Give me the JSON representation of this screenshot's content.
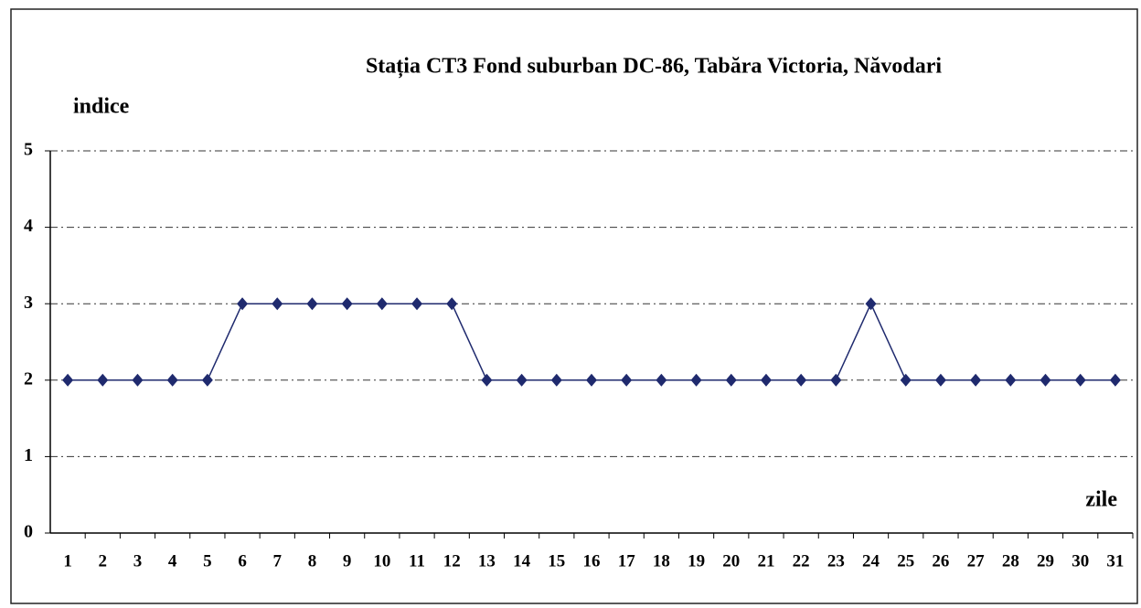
{
  "chart_data": {
    "type": "line",
    "title": "Stația CT3 Fond suburban  DC-86, Tabăra Victoria, Năvodari",
    "y_label": "indice",
    "x_label": "zile",
    "categories": [
      1,
      2,
      3,
      4,
      5,
      6,
      7,
      8,
      9,
      10,
      11,
      12,
      13,
      14,
      15,
      16,
      17,
      18,
      19,
      20,
      21,
      22,
      23,
      24,
      25,
      26,
      27,
      28,
      29,
      30,
      31
    ],
    "series": [
      {
        "color": "#1f2a6e",
        "values": [
          2,
          2,
          2,
          2,
          2,
          3,
          3,
          3,
          3,
          3,
          3,
          3,
          2,
          2,
          2,
          2,
          2,
          2,
          2,
          2,
          2,
          2,
          2,
          3,
          2,
          2,
          2,
          2,
          2,
          2,
          2
        ]
      }
    ],
    "ylim": [
      0,
      5
    ],
    "yticks": [
      0,
      1,
      2,
      3,
      4,
      5
    ],
    "grid": true
  }
}
